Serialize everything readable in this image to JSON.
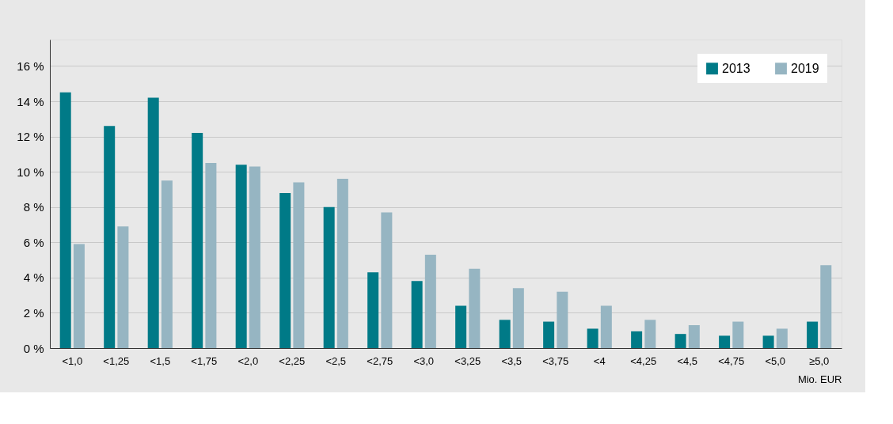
{
  "chart_data": {
    "type": "bar",
    "categories": [
      "<1,0",
      "<1,25",
      "<1,5",
      "<1,75",
      "<2,0",
      "<2,25",
      "<2,5",
      "<2,75",
      "<3,0",
      "<3,25",
      "<3,5",
      "<3,75",
      "<4",
      "<4,25",
      "<4,5",
      "<4,75",
      "<5,0",
      "≥5,0"
    ],
    "series": [
      {
        "name": "2013",
        "color": "#007a87",
        "values": [
          14.5,
          12.6,
          14.2,
          12.2,
          10.4,
          8.8,
          8.0,
          4.3,
          3.8,
          2.4,
          1.6,
          1.5,
          1.1,
          0.95,
          0.8,
          0.7,
          0.7,
          1.5
        ]
      },
      {
        "name": "2019",
        "color": "#96b5c2",
        "values": [
          5.9,
          6.9,
          9.5,
          10.5,
          10.3,
          9.4,
          9.6,
          7.7,
          5.3,
          4.5,
          3.4,
          3.2,
          2.4,
          1.6,
          1.3,
          1.5,
          1.1,
          4.7
        ]
      }
    ],
    "xlabel": "Mio. EUR",
    "ylim": [
      0,
      17.5
    ],
    "yticks": [
      {
        "value": 0,
        "label": "0 %"
      },
      {
        "value": 2,
        "label": "2 %"
      },
      {
        "value": 4,
        "label": "4 %"
      },
      {
        "value": 6,
        "label": "6 %"
      },
      {
        "value": 8,
        "label": "8 %"
      },
      {
        "value": 10,
        "label": "10 %"
      },
      {
        "value": 12,
        "label": "12 %"
      },
      {
        "value": 14,
        "label": "14 %"
      },
      {
        "value": 16,
        "label": "16 %"
      }
    ],
    "grid": "y",
    "legend": "top right"
  }
}
